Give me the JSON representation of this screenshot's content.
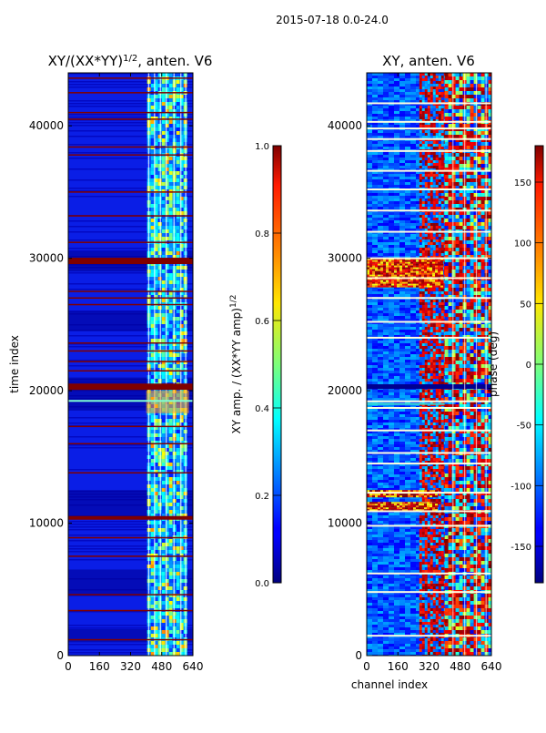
{
  "chart_data": {
    "suptitle": "2015-07-18 0.0-24.0",
    "panels": [
      {
        "type": "heatmap",
        "title": "XY/(XX*YY)",
        "title_exp": "1/2",
        "title_suffix": ", anten. V6",
        "ylabel": "time index",
        "xlabel": "",
        "xlim": [
          0,
          640
        ],
        "ylim": [
          0,
          44000
        ],
        "xticks": [
          "0",
          "160",
          "320",
          "480",
          "640"
        ],
        "yticks": [
          "0",
          "10000",
          "20000",
          "30000",
          "40000"
        ],
        "colormap": "jet",
        "saturated_rows": [
          1200,
          3400,
          4600,
          7500,
          8900,
          10400,
          13800,
          16000,
          17300,
          20300,
          21500,
          22200,
          23000,
          23600,
          26500,
          27000,
          27500,
          29800,
          31200,
          33200,
          35000,
          37800,
          38400,
          40500,
          41000,
          42500,
          43600
        ],
        "colorbar": {
          "label": "XY amp. / (XX*YY amp)",
          "label_exp": "1/2",
          "range": [
            0.0,
            1.0
          ],
          "ticks": [
            "0.0",
            "0.2",
            "0.4",
            "0.6",
            "0.8",
            "1.0"
          ]
        }
      },
      {
        "type": "heatmap",
        "title": "XY, anten. V6",
        "ylabel": "",
        "xlabel": "channel index",
        "xlim": [
          0,
          640
        ],
        "ylim": [
          0,
          44000
        ],
        "xticks": [
          "0",
          "160",
          "320",
          "480",
          "640"
        ],
        "yticks": [
          "0",
          "10000",
          "20000",
          "30000",
          "40000"
        ],
        "colormap": "jet",
        "flagged_rows": [
          1500,
          4800,
          6200,
          9800,
          10900,
          12300,
          14500,
          15300,
          17000,
          18700,
          19200,
          24000,
          25200,
          27000,
          28500,
          30000,
          32000,
          33600,
          35200,
          36600,
          38100,
          39000,
          39800,
          40300,
          41700
        ],
        "colorbar": {
          "label": "phase (deg)",
          "range": [
            -180,
            180
          ],
          "ticks": [
            "-150",
            "-100",
            "-50",
            "0",
            "50",
            "100",
            "150"
          ]
        }
      }
    ]
  }
}
